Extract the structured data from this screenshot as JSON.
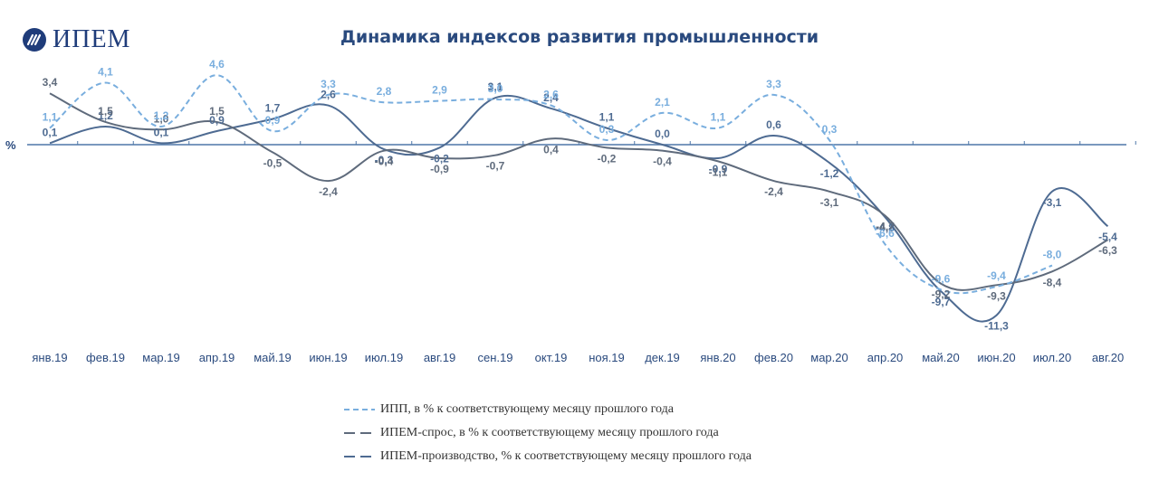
{
  "logo": {
    "text": "ИПЕМ"
  },
  "chart_data": {
    "type": "line",
    "title": "Динамика индексов развития промышленности",
    "ylabel": "%",
    "xlabel": "",
    "ylim": [
      -12.5,
      6.5
    ],
    "categories": [
      "янв.19",
      "фев.19",
      "мар.19",
      "апр.19",
      "май.19",
      "июн.19",
      "июл.19",
      "авг.19",
      "сен.19",
      "окт.19",
      "ноя.19",
      "дек.19",
      "янв.20",
      "фев.20",
      "мар.20",
      "апр.20",
      "май.20",
      "июн.20",
      "июл.20",
      "авг.20"
    ],
    "series": [
      {
        "name": "ИПП, в % к соответствующему месяцу прошлого года",
        "color": "#79aede",
        "dash": true,
        "values": [
          1.1,
          4.1,
          1.2,
          4.6,
          0.9,
          3.3,
          2.8,
          2.9,
          3.0,
          2.6,
          0.3,
          2.1,
          1.1,
          3.3,
          0.3,
          -6.6,
          -9.6,
          -9.4,
          -8.0,
          null
        ]
      },
      {
        "name": "ИПЕМ-спрос, в % к соответствующему месяцу прошлого года",
        "color": "#5f6b7c",
        "dash": false,
        "values": [
          3.4,
          1.5,
          1.0,
          1.5,
          -0.5,
          -2.4,
          -0.4,
          -0.9,
          -0.7,
          0.4,
          -0.2,
          -0.4,
          -1.1,
          -2.4,
          -3.1,
          -4.7,
          -9.2,
          -9.3,
          -8.4,
          -6.3
        ]
      },
      {
        "name": "ИПЕМ-производство, % к соответствующему месяцу прошлого года",
        "color": "#4e6b92",
        "dash": false,
        "values": [
          0.1,
          1.2,
          0.1,
          0.9,
          1.7,
          2.6,
          -0.3,
          -0.2,
          3.1,
          2.4,
          1.1,
          0.0,
          -0.9,
          0.6,
          -1.2,
          -4.8,
          -9.7,
          -11.3,
          -3.1,
          -5.4
        ]
      }
    ]
  }
}
